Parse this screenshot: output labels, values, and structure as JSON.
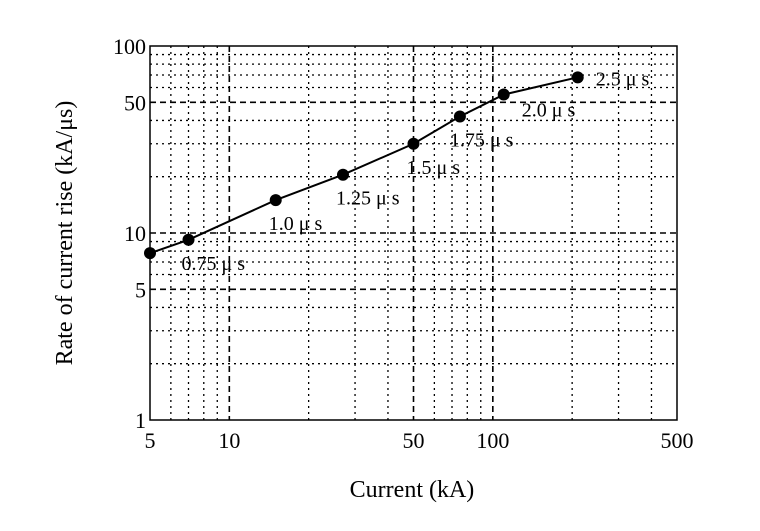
{
  "chart_data": {
    "type": "line",
    "xscale": "log",
    "yscale": "log",
    "xlim": [
      5,
      500
    ],
    "ylim": [
      1,
      100
    ],
    "xlabel": "Current (kA)",
    "ylabel": "Rate of current rise (kA/μs)",
    "x_ticks": [
      "5",
      "10",
      "50",
      "100",
      "500"
    ],
    "y_ticks": [
      "1",
      "5",
      "10",
      "50",
      "100"
    ],
    "grid": true,
    "series": [
      {
        "x": [
          5,
          7,
          15,
          27,
          50,
          75,
          110,
          210
        ],
        "y": [
          7.8,
          9.2,
          15,
          20.5,
          30,
          42,
          55,
          68
        ],
        "labels": [
          "",
          "0.75 μ s",
          "1.0 μ s",
          "1.25 μ s",
          "1.5 μ s",
          "1.75 μ s",
          "2.0 μ s",
          "2.5 μ s"
        ]
      }
    ]
  }
}
